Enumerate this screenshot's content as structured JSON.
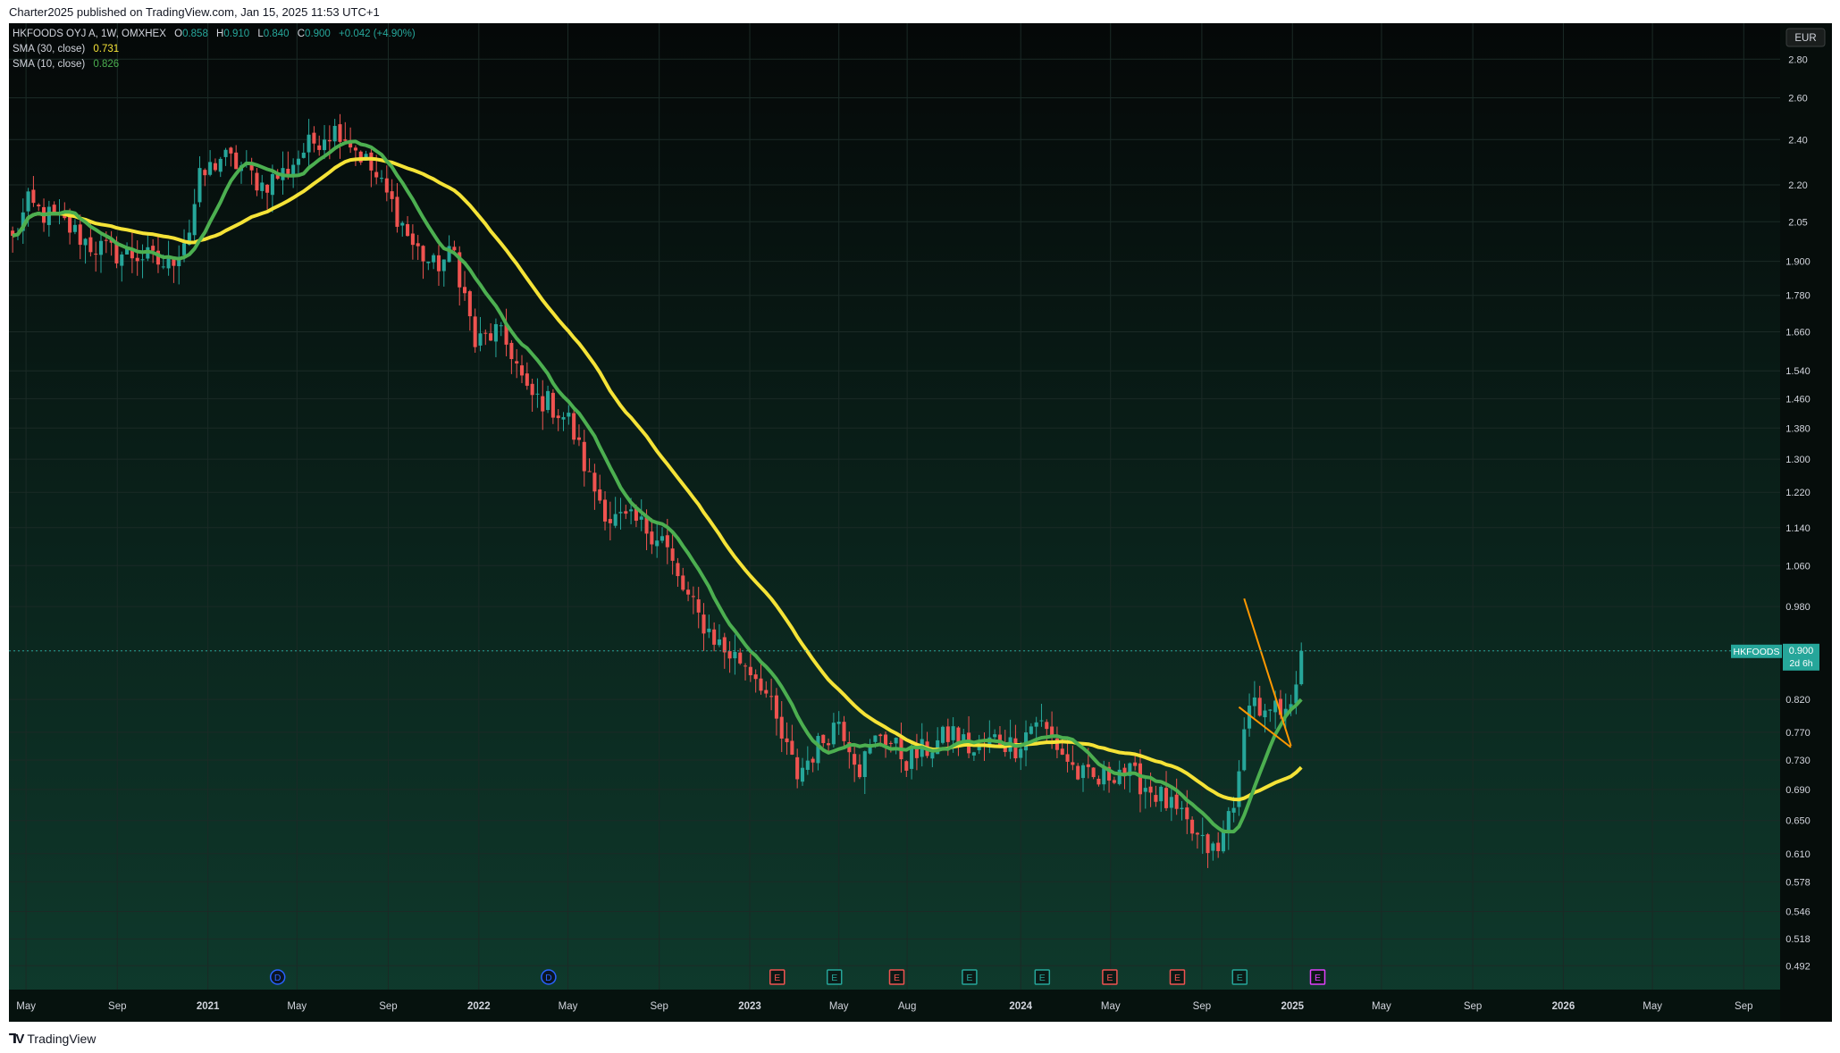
{
  "header": {
    "published_text": "Charter2025 published on TradingView.com, Jan 15, 2025 11:53 UTC+1"
  },
  "footer": {
    "logo_text": "TradingView"
  },
  "legend": {
    "symbol_line": {
      "title": "HKFOODS OYJ A, 1W, OMXHEX",
      "o_label": "O",
      "o_value": "0.858",
      "h_label": "H",
      "h_value": "0.910",
      "l_label": "L",
      "l_value": "0.840",
      "c_label": "C",
      "c_value": "0.900",
      "change": "+0.042 (+4.90%)"
    },
    "sma30": {
      "label": "SMA (30, close)",
      "value": "0.731"
    },
    "sma10": {
      "label": "SMA (10, close)",
      "value": "0.826"
    }
  },
  "price_axis": {
    "currency": "EUR",
    "last_price_tag": {
      "symbol": "HKFOODS",
      "price": "0.900",
      "countdown": "2d 6h"
    }
  },
  "colors": {
    "bg_top": "#050808",
    "bg_bottom": "#0f3b2d",
    "up": "#26a69a",
    "down": "#ef5350",
    "sma30": "#f5e337",
    "sma10": "#4caf50",
    "pattern": "#ff9800",
    "grid": "#1b2a26",
    "axis_text": "#d1d4dc"
  },
  "chart_data": {
    "type": "candlestick",
    "title": "HKFOODS OYJ A, 1W, OMXHEX",
    "scale": "log",
    "ylim": [
      0.47,
      3.0
    ],
    "y_ticks": [
      "2.80",
      "2.60",
      "2.40",
      "2.20",
      "2.05",
      "1.900",
      "1.780",
      "1.660",
      "1.540",
      "1.460",
      "1.380",
      "1.300",
      "1.220",
      "1.140",
      "1.060",
      "0.980",
      "0.900",
      "0.820",
      "0.770",
      "0.730",
      "0.690",
      "0.650",
      "0.610",
      "0.578",
      "0.546",
      "0.518",
      "0.492"
    ],
    "x_ticks": [
      {
        "label": "May",
        "date": "2020-05-01"
      },
      {
        "label": "Sep",
        "date": "2020-09-01"
      },
      {
        "label": "2021",
        "date": "2021-01-01"
      },
      {
        "label": "May",
        "date": "2021-05-01"
      },
      {
        "label": "Sep",
        "date": "2021-09-01"
      },
      {
        "label": "2022",
        "date": "2022-01-01"
      },
      {
        "label": "May",
        "date": "2022-05-01"
      },
      {
        "label": "Sep",
        "date": "2022-09-01"
      },
      {
        "label": "2023",
        "date": "2023-01-01"
      },
      {
        "label": "May",
        "date": "2023-05-01"
      },
      {
        "label": "Aug",
        "date": "2023-08-01"
      },
      {
        "label": "2024",
        "date": "2024-01-01"
      },
      {
        "label": "May",
        "date": "2024-05-01"
      },
      {
        "label": "Sep",
        "date": "2024-09-01"
      },
      {
        "label": "2025",
        "date": "2025-01-01"
      },
      {
        "label": "May",
        "date": "2025-05-01"
      },
      {
        "label": "Sep",
        "date": "2025-09-01"
      },
      {
        "label": "2026",
        "date": "2026-01-01"
      },
      {
        "label": "May",
        "date": "2026-05-01"
      },
      {
        "label": "Sep",
        "date": "2026-09-01"
      }
    ],
    "x_range": [
      "2020-04-08",
      "2026-10-20"
    ],
    "close_anchors": [
      [
        "2020-04-13",
        1.98
      ],
      [
        "2020-05-04",
        2.12
      ],
      [
        "2020-05-25",
        2.08
      ],
      [
        "2020-06-22",
        2.04
      ],
      [
        "2020-07-27",
        1.96
      ],
      [
        "2020-08-31",
        1.93
      ],
      [
        "2020-10-05",
        1.92
      ],
      [
        "2020-11-09",
        1.88
      ],
      [
        "2020-12-07",
        2.02
      ],
      [
        "2020-12-21",
        2.22
      ],
      [
        "2021-01-18",
        2.32
      ],
      [
        "2021-02-15",
        2.28
      ],
      [
        "2021-03-15",
        2.2
      ],
      [
        "2021-04-12",
        2.25
      ],
      [
        "2021-05-10",
        2.35
      ],
      [
        "2021-06-07",
        2.43
      ],
      [
        "2021-06-28",
        2.45
      ],
      [
        "2021-08-02",
        2.3
      ],
      [
        "2021-09-06",
        2.12
      ],
      [
        "2021-10-04",
        1.96
      ],
      [
        "2021-11-01",
        1.88
      ],
      [
        "2021-11-29",
        1.93
      ],
      [
        "2021-12-27",
        1.62
      ],
      [
        "2022-01-24",
        1.66
      ],
      [
        "2022-02-14",
        1.6
      ],
      [
        "2022-03-07",
        1.47
      ],
      [
        "2022-04-04",
        1.45
      ],
      [
        "2022-05-02",
        1.4
      ],
      [
        "2022-05-30",
        1.25
      ],
      [
        "2022-06-27",
        1.16
      ],
      [
        "2022-08-01",
        1.15
      ],
      [
        "2022-09-05",
        1.12
      ],
      [
        "2022-09-26",
        1.03
      ],
      [
        "2022-10-24",
        0.96
      ],
      [
        "2022-11-28",
        0.9
      ],
      [
        "2022-12-26",
        0.88
      ],
      [
        "2023-01-16",
        0.85
      ],
      [
        "2023-02-13",
        0.76
      ],
      [
        "2023-03-06",
        0.71
      ],
      [
        "2023-04-03",
        0.75
      ],
      [
        "2023-05-01",
        0.79
      ],
      [
        "2023-05-29",
        0.72
      ],
      [
        "2023-06-26",
        0.77
      ],
      [
        "2023-07-31",
        0.73
      ],
      [
        "2023-09-04",
        0.75
      ],
      [
        "2023-10-02",
        0.77
      ],
      [
        "2023-10-30",
        0.74
      ],
      [
        "2023-11-27",
        0.76
      ],
      [
        "2023-12-25",
        0.75
      ],
      [
        "2024-01-22",
        0.79
      ],
      [
        "2024-02-19",
        0.75
      ],
      [
        "2024-03-18",
        0.71
      ],
      [
        "2024-04-15",
        0.7
      ],
      [
        "2024-05-13",
        0.72
      ],
      [
        "2024-06-10",
        0.7
      ],
      [
        "2024-07-08",
        0.68
      ],
      [
        "2024-08-05",
        0.65
      ],
      [
        "2024-09-02",
        0.62
      ],
      [
        "2024-09-23",
        0.61
      ],
      [
        "2024-10-07",
        0.66
      ],
      [
        "2024-10-21",
        0.7
      ],
      [
        "2024-11-04",
        0.83
      ],
      [
        "2024-11-25",
        0.79
      ],
      [
        "2024-12-09",
        0.8
      ],
      [
        "2024-12-23",
        0.79
      ],
      [
        "2025-01-06",
        0.86
      ],
      [
        "2025-01-13",
        0.9
      ]
    ],
    "last_close": 0.9,
    "series": [
      {
        "name": "SMA (30, close)",
        "last": 0.731
      },
      {
        "name": "SMA (10, close)",
        "last": 0.826
      }
    ],
    "pattern_lines": [
      [
        [
          "2024-10-28",
          0.995
        ],
        [
          "2024-12-30",
          0.75
        ]
      ],
      [
        [
          "2024-10-21",
          0.808
        ],
        [
          "2024-12-30",
          0.748
        ]
      ]
    ],
    "event_markers": [
      {
        "label": "D",
        "date": "2021-04-05",
        "kind": "dividend"
      },
      {
        "label": "D",
        "date": "2022-04-05",
        "kind": "dividend"
      },
      {
        "label": "E",
        "date": "2023-02-07",
        "kind": "earnings-down"
      },
      {
        "label": "E",
        "date": "2023-04-25",
        "kind": "earnings-up"
      },
      {
        "label": "E",
        "date": "2023-07-18",
        "kind": "earnings-down"
      },
      {
        "label": "E",
        "date": "2023-10-24",
        "kind": "earnings-up"
      },
      {
        "label": "E",
        "date": "2024-01-30",
        "kind": "earnings-up"
      },
      {
        "label": "E",
        "date": "2024-04-30",
        "kind": "earnings-down"
      },
      {
        "label": "E",
        "date": "2024-07-30",
        "kind": "earnings-down"
      },
      {
        "label": "E",
        "date": "2024-10-22",
        "kind": "earnings-up"
      },
      {
        "label": "E",
        "date": "2025-02-04",
        "kind": "earnings-upcoming"
      }
    ]
  }
}
